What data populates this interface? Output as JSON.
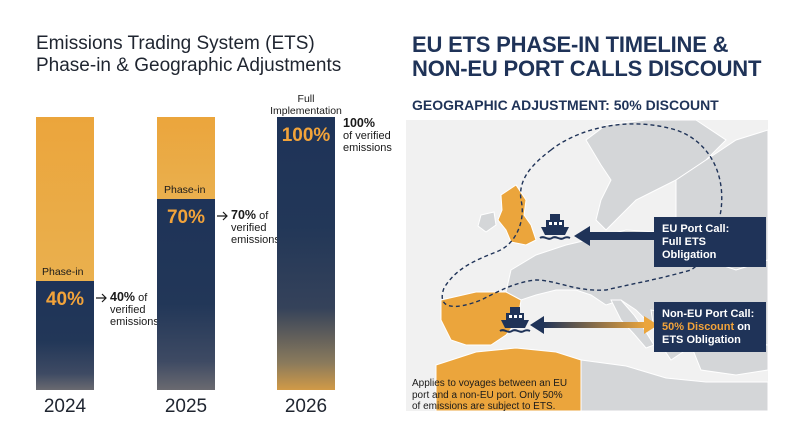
{
  "left_title": {
    "line1": "Emissions Trading System (ETS)",
    "line2": "Phase-in & Geographic Adjustments"
  },
  "right_title": {
    "line1": "EU ETS PHASE-IN TIMELINE &",
    "line2": "NON-EU PORT CALLS DISCOUNT"
  },
  "geo_subtitle": "GEOGRAPHIC ADJUSTMENT: 50% DISCOUNT",
  "chart_data": {
    "type": "bar",
    "categories": [
      "2024",
      "2025",
      "2026"
    ],
    "values": [
      40,
      70,
      100
    ],
    "unit": "% of verified emissions",
    "ylim": [
      0,
      100
    ],
    "bar_labels": [
      "40%",
      "70%",
      "100%"
    ],
    "phase_labels": [
      "Phase-in",
      "Phase-in",
      "Full\nImplementation"
    ],
    "annotations": [
      {
        "bold": "40%",
        "rest1": " of",
        "rest2": "verified",
        "rest3": "emissions"
      },
      {
        "bold": "70%",
        "rest1": " of",
        "rest2": "verified",
        "rest3": "emissions"
      },
      {
        "bold": "100%",
        "rest1": "",
        "rest2": "of verified",
        "rest3": "emissions"
      }
    ]
  },
  "labels": {
    "phase_in": "Phase-in",
    "full_impl_1": "Full",
    "full_impl_2": "Implementation"
  },
  "callouts": {
    "eu": {
      "line1": "EU Port Call:",
      "line2": "Full ETS Obligation"
    },
    "non_eu": {
      "line1": "Non-EU Port Call:",
      "line2_hl": "50% Discount",
      "line2_rest": " on",
      "line3": "ETS Obligation"
    }
  },
  "note": "Applies to voyages between an EU port and a non-EU port. Only 50% of emissions are subject to ETS.",
  "icons": [
    "ship-icon",
    "double-arrow-icon",
    "arrow-left-icon"
  ],
  "colors": {
    "navy": "#1f3358",
    "orange": "#eba53c",
    "map_land": "#d4d6d8",
    "map_sea": "#f1f1f1"
  }
}
